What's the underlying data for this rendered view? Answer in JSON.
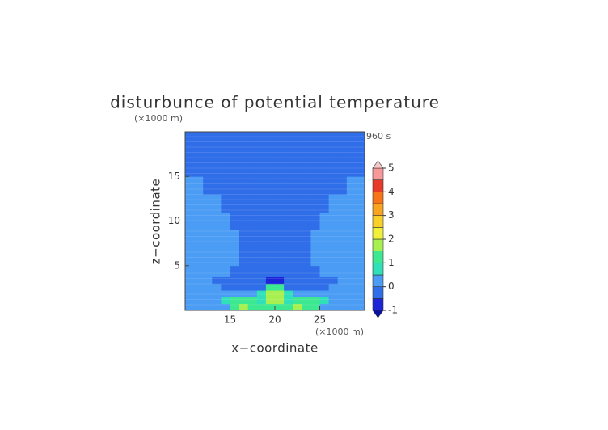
{
  "chart_data": {
    "type": "contour",
    "title": "disturbunce of potential temperature",
    "x_label": "x−coordinate",
    "y_label": "z−coordinate",
    "x_unit": "(×1000 m)",
    "y_unit": "(×1000 m)",
    "time_label": "960 s",
    "xlim": [
      10,
      30
    ],
    "ylim": [
      0,
      20
    ],
    "xticks": [
      15,
      20,
      25
    ],
    "yticks": [
      5,
      10,
      15
    ],
    "field": {
      "x_edges": [
        10,
        11,
        12,
        13,
        14,
        15,
        16,
        17,
        18,
        19,
        20,
        21,
        22,
        23,
        24,
        25,
        26,
        27,
        28,
        29,
        30
      ],
      "z_edges": [
        0,
        0.75,
        1.5,
        2.25,
        3,
        3.75,
        5,
        7,
        9,
        11,
        13,
        15,
        17,
        20
      ],
      "values": [
        [
          0.2,
          0.2,
          0.2,
          0.2,
          0.2,
          1.2,
          1.8,
          1.2,
          1.2,
          1.2,
          1.2,
          1.2,
          1.8,
          1.2,
          1.2,
          0.2,
          0.2,
          0.2,
          0.2,
          0.2
        ],
        [
          0.2,
          0.2,
          0.2,
          0.2,
          0.7,
          1.2,
          1.2,
          1.2,
          0.7,
          1.8,
          1.8,
          0.7,
          1.2,
          1.2,
          1.2,
          0.7,
          0.2,
          0.2,
          0.2,
          0.2
        ],
        [
          0.2,
          0.2,
          0.2,
          0.2,
          0.2,
          0.2,
          0.2,
          0.2,
          0.7,
          1.8,
          1.8,
          0.7,
          0.2,
          0.2,
          0.2,
          0.2,
          0.2,
          0.2,
          0.2,
          0.2
        ],
        [
          0.2,
          0.2,
          0.2,
          0.2,
          -0.1,
          -0.1,
          -0.1,
          -0.1,
          -0.1,
          1.2,
          1.2,
          -0.1,
          -0.1,
          -0.1,
          -0.1,
          -0.1,
          0.2,
          0.2,
          0.2,
          0.2
        ],
        [
          0.2,
          0.2,
          0.2,
          -0.1,
          -0.1,
          -0.1,
          -0.1,
          -0.1,
          -0.1,
          -0.8,
          -0.8,
          -0.1,
          -0.1,
          -0.1,
          -0.1,
          -0.1,
          -0.1,
          0.2,
          0.2,
          0.2
        ],
        [
          0.2,
          0.2,
          0.2,
          0.2,
          0.2,
          -0.1,
          -0.1,
          -0.1,
          -0.1,
          -0.1,
          -0.1,
          -0.1,
          -0.1,
          -0.1,
          -0.1,
          0.2,
          0.2,
          0.2,
          0.2,
          0.2
        ],
        [
          0.2,
          0.2,
          0.2,
          0.2,
          0.2,
          0.2,
          -0.1,
          -0.1,
          -0.1,
          -0.1,
          -0.1,
          -0.1,
          -0.1,
          -0.1,
          0.2,
          0.2,
          0.2,
          0.2,
          0.2,
          0.2
        ],
        [
          0.2,
          0.2,
          0.2,
          0.2,
          0.2,
          0.2,
          -0.1,
          -0.1,
          -0.1,
          -0.1,
          -0.1,
          -0.1,
          -0.1,
          -0.1,
          0.2,
          0.2,
          0.2,
          0.2,
          0.2,
          0.2
        ],
        [
          0.2,
          0.2,
          0.2,
          0.2,
          0.2,
          -0.1,
          -0.1,
          -0.1,
          -0.1,
          -0.1,
          -0.1,
          -0.1,
          -0.1,
          -0.1,
          -0.1,
          0.2,
          0.2,
          0.2,
          0.2,
          0.2
        ],
        [
          0.2,
          0.2,
          0.2,
          0.2,
          -0.1,
          -0.1,
          -0.1,
          -0.1,
          -0.1,
          -0.1,
          -0.1,
          -0.1,
          -0.1,
          -0.1,
          -0.1,
          -0.1,
          0.2,
          0.2,
          0.2,
          0.2
        ],
        [
          0.2,
          0.2,
          -0.1,
          -0.1,
          -0.1,
          -0.1,
          -0.1,
          -0.1,
          -0.1,
          -0.1,
          -0.1,
          -0.1,
          -0.1,
          -0.1,
          -0.1,
          -0.1,
          -0.1,
          -0.1,
          0.2,
          0.2
        ],
        [
          -0.1,
          -0.1,
          -0.1,
          -0.1,
          -0.1,
          -0.1,
          -0.1,
          -0.1,
          -0.1,
          -0.1,
          -0.1,
          -0.1,
          -0.1,
          -0.1,
          -0.1,
          -0.1,
          -0.1,
          -0.1,
          -0.1,
          -0.1
        ],
        [
          -0.1,
          -0.1,
          -0.1,
          -0.1,
          -0.1,
          -0.1,
          -0.1,
          -0.1,
          -0.1,
          -0.1,
          -0.1,
          -0.1,
          -0.1,
          -0.1,
          -0.1,
          -0.1,
          -0.1,
          -0.1,
          -0.1,
          -0.1
        ]
      ]
    },
    "colorbar": {
      "levels": [
        -1,
        -0.5,
        0,
        0.5,
        1,
        1.5,
        2,
        2.5,
        3,
        3.5,
        4,
        4.5,
        5
      ],
      "colors": [
        "#1c24d8",
        "#2f6ee8",
        "#4a9cf4",
        "#30e0b8",
        "#3ce890",
        "#a8f050",
        "#f0f038",
        "#f8d028",
        "#f8a420",
        "#f87418",
        "#e83a28",
        "#f89898"
      ],
      "under_color": "#0a10a0",
      "over_color": "#f8c8c8",
      "ticks": [
        -1,
        0,
        1,
        2,
        3,
        4,
        5
      ]
    }
  }
}
